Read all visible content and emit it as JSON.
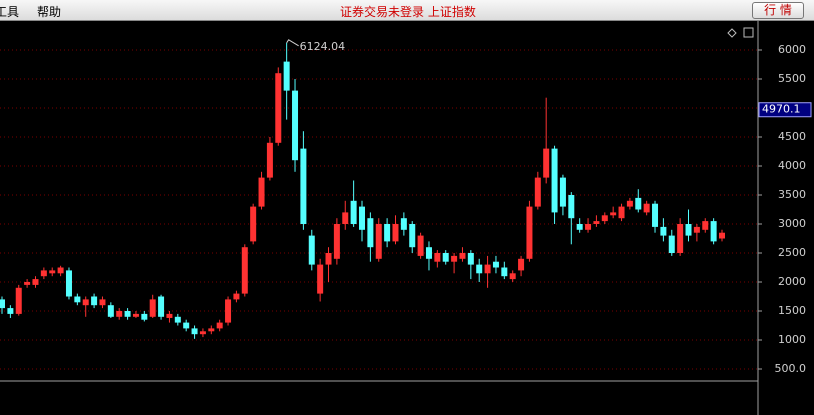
{
  "menu": [
    "工具",
    "帮助"
  ],
  "status": "证券交易未登录 上证指数",
  "button": "行 情",
  "chart_data": {
    "type": "candlestick",
    "up_color": "#ff3232",
    "down_color": "#54ffff",
    "grid": true,
    "grid_color": "#7a0000",
    "ylim": [
      293,
      6483
    ],
    "yticks": [
      {
        "value": 500,
        "label": "500.0"
      },
      1000,
      1500,
      2000,
      2500,
      3000,
      3500,
      4000,
      4500,
      5000,
      5500,
      6000
    ],
    "cursor_value": 4970.1,
    "peak_index": 34,
    "open": [
      1700,
      1550,
      1450,
      1950,
      1950,
      2100,
      2150,
      2150,
      2200,
      1750,
      1600,
      1750,
      1600,
      1600,
      1400,
      1500,
      1400,
      1450,
      1400,
      1750,
      1380,
      1400,
      1300,
      1200,
      1100,
      1150,
      1200,
      1300,
      1700,
      1800,
      2700,
      3300,
      3800,
      4400,
      5800,
      5300,
      4300,
      2800,
      1800,
      2300,
      2400,
      3000,
      3400,
      3300,
      3100,
      2400,
      3000,
      2700,
      3100,
      3000,
      2450,
      2600,
      2350,
      2500,
      2350,
      2400,
      2500,
      2300,
      2150,
      2350,
      2250,
      2050,
      2200,
      2400,
      3300,
      3800,
      4300,
      3800,
      3500,
      3000,
      2900,
      3000,
      3050,
      3150,
      3100,
      3300,
      3450,
      3200,
      3350,
      2950,
      2800,
      2500,
      3000,
      2850,
      2900,
      3050,
      2750
    ],
    "high": [
      1750,
      1600,
      1950,
      2050,
      2100,
      2250,
      2250,
      2280,
      2250,
      1800,
      1750,
      1800,
      1750,
      1650,
      1550,
      1550,
      1500,
      1500,
      1780,
      1780,
      1500,
      1450,
      1350,
      1250,
      1200,
      1250,
      1350,
      1750,
      1850,
      2650,
      3350,
      3900,
      4500,
      5700,
      6124.04,
      5500,
      4600,
      2900,
      2400,
      2600,
      3100,
      3400,
      3750,
      3400,
      3200,
      3100,
      3100,
      3150,
      3200,
      3050,
      2850,
      2700,
      2550,
      2550,
      2500,
      2600,
      2550,
      2400,
      2450,
      2450,
      2350,
      2200,
      2450,
      3400,
      3900,
      5178,
      4350,
      3850,
      3550,
      3100,
      3100,
      3150,
      3200,
      3300,
      3350,
      3450,
      3600,
      3400,
      3400,
      3100,
      2900,
      3100,
      3250,
      3000,
      3100,
      3100,
      2900
    ],
    "low": [
      1450,
      1380,
      1420,
      1900,
      1900,
      2050,
      2100,
      2100,
      1700,
      1600,
      1400,
      1550,
      1550,
      1380,
      1350,
      1350,
      1380,
      1320,
      1380,
      1350,
      1300,
      1250,
      1150,
      1020,
      1050,
      1100,
      1150,
      1250,
      1650,
      1750,
      2650,
      3250,
      3750,
      4350,
      4800,
      3900,
      2900,
      2200,
      1664,
      2000,
      2300,
      2900,
      2950,
      2700,
      2350,
      2350,
      2600,
      2650,
      2800,
      2500,
      2400,
      2200,
      2250,
      2300,
      2150,
      2350,
      2050,
      2000,
      1900,
      2150,
      2050,
      2000,
      2100,
      2350,
      3250,
      3700,
      3000,
      3150,
      2650,
      2850,
      2850,
      2950,
      3000,
      3100,
      3050,
      3250,
      3200,
      3150,
      2850,
      2700,
      2450,
      2450,
      2700,
      2700,
      2850,
      2650,
      2700
    ],
    "close": [
      1550,
      1450,
      1900,
      2000,
      2050,
      2200,
      2200,
      2250,
      1750,
      1650,
      1700,
      1600,
      1700,
      1400,
      1500,
      1400,
      1450,
      1350,
      1700,
      1400,
      1450,
      1300,
      1200,
      1100,
      1150,
      1200,
      1300,
      1700,
      1800,
      2600,
      3300,
      3800,
      4400,
      5600,
      5300,
      4100,
      3000,
      2300,
      2300,
      2500,
      3000,
      3200,
      3000,
      2900,
      2600,
      3000,
      2700,
      3000,
      2900,
      2600,
      2800,
      2400,
      2500,
      2350,
      2450,
      2500,
      2300,
      2150,
      2300,
      2250,
      2100,
      2150,
      2400,
      3300,
      3800,
      4300,
      3200,
      3300,
      3100,
      2900,
      3000,
      3050,
      3150,
      3200,
      3300,
      3400,
      3250,
      3350,
      2950,
      2800,
      2500,
      3000,
      2800,
      2950,
      3050,
      2700,
      2850
    ]
  }
}
